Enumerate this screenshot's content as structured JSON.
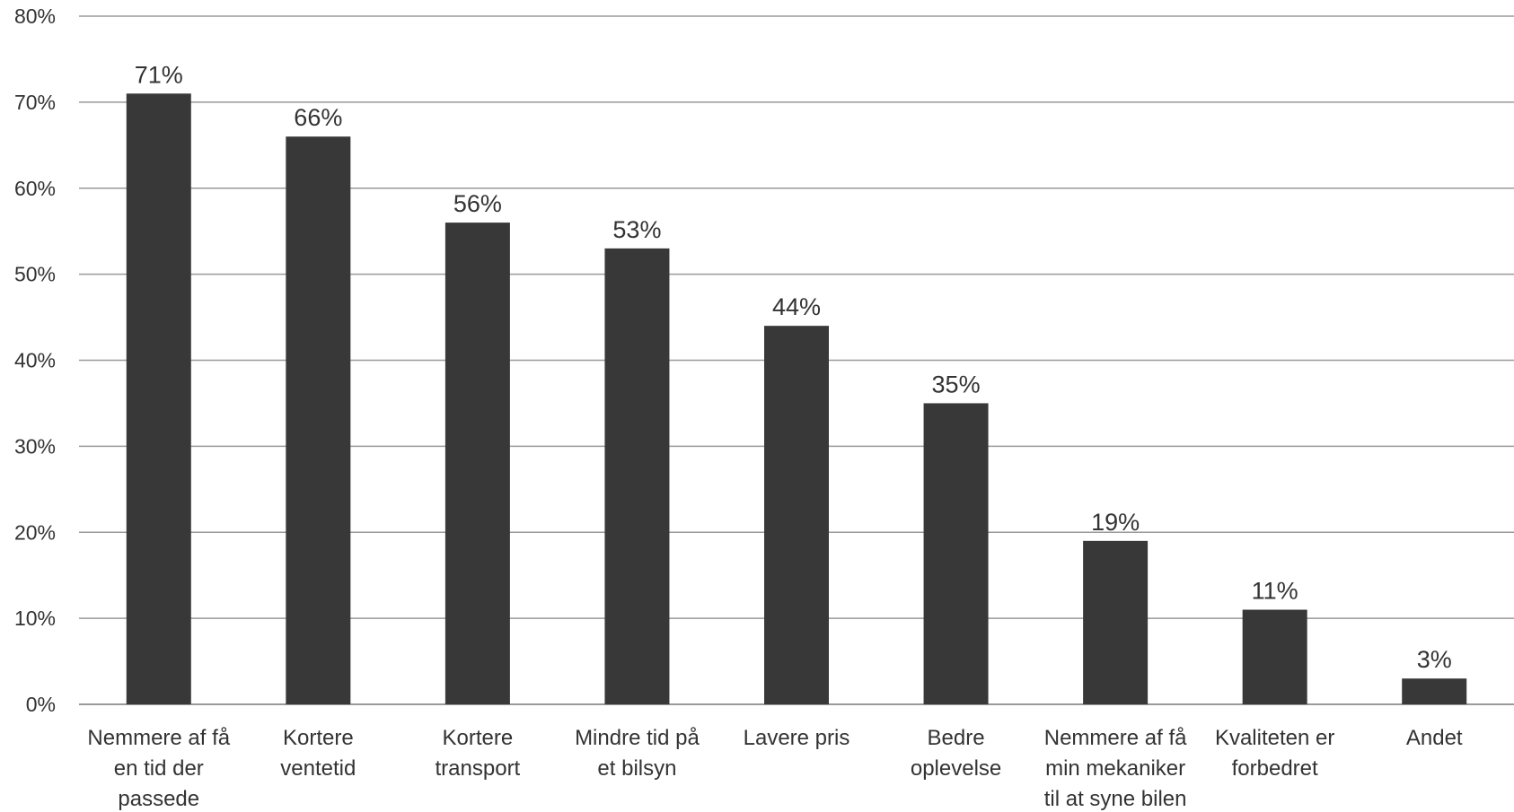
{
  "chart_data": {
    "type": "bar",
    "title": "",
    "xlabel": "",
    "ylabel": "",
    "ylim": [
      0,
      0.8
    ],
    "ytick_values": [
      0,
      0.1,
      0.2,
      0.3,
      0.4,
      0.5,
      0.6,
      0.7,
      0.8
    ],
    "ytick_labels": [
      "0%",
      "10%",
      "20%",
      "30%",
      "40%",
      "50%",
      "60%",
      "70%",
      "80%"
    ],
    "grid": true,
    "legend": "none",
    "categories": [
      "Nemmere af få en tid der passede",
      "Kortere ventetid",
      "Kortere transport",
      "Mindre tid på et bilsyn",
      "Lavere pris",
      "Bedre oplevelse",
      "Nemmere af få min mekaniker til at syne bilen",
      "Kvaliteten er forbedret",
      "Andet"
    ],
    "category_label_lines": [
      [
        "Nemmere af få",
        "en tid der",
        "passede"
      ],
      [
        "Kortere",
        "ventetid"
      ],
      [
        "Kortere",
        "transport"
      ],
      [
        "Mindre tid på",
        "et bilsyn"
      ],
      [
        "Lavere pris"
      ],
      [
        "Bedre",
        "oplevelse"
      ],
      [
        "Nemmere af få",
        "min mekaniker",
        "til at syne bilen"
      ],
      [
        "Kvaliteten er",
        "forbedret"
      ],
      [
        "Andet"
      ]
    ],
    "values": [
      0.71,
      0.66,
      0.56,
      0.53,
      0.44,
      0.35,
      0.19,
      0.11,
      0.03
    ],
    "data_labels": [
      "71%",
      "66%",
      "56%",
      "53%",
      "44%",
      "35%",
      "19%",
      "11%",
      "3%"
    ],
    "colors": {
      "bar": "#383838",
      "grid": "#9a9a9a",
      "text": "#333333"
    }
  }
}
